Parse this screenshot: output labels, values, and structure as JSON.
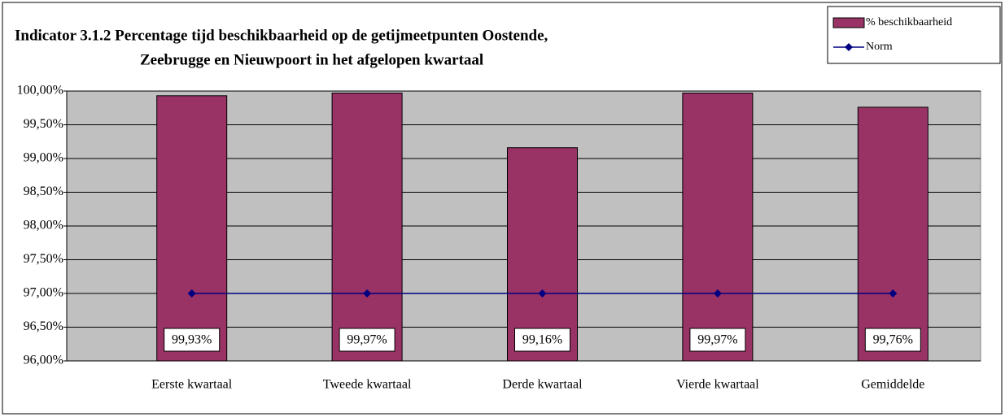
{
  "chart_data": {
    "type": "bar",
    "title": [
      "Indicator 3.1.2 Percentage tijd beschikbaarheid op de getijmeetpunten Oostende,",
      "Zeebrugge en Nieuwpoort in het afgelopen kwartaal"
    ],
    "categories": [
      "Eerste kwartaal",
      "Tweede kwartaal",
      "Derde kwartaal",
      "Vierde kwartaal",
      "Gemiddelde"
    ],
    "series": [
      {
        "name": "% beschikbaarheid",
        "color": "#993366",
        "values": [
          99.93,
          99.97,
          99.16,
          99.97,
          99.76
        ],
        "value_labels": [
          "99,93%",
          "99,97%",
          "99,16%",
          "99,97%",
          "99,76%"
        ]
      },
      {
        "name": "Norm",
        "type": "line",
        "color": "#000080",
        "values": [
          97,
          97,
          97,
          97,
          97
        ]
      }
    ],
    "ylim": [
      96,
      100
    ],
    "yticks": [
      {
        "value": 96,
        "label": "96,00%"
      },
      {
        "value": 96.5,
        "label": "96,50%"
      },
      {
        "value": 97,
        "label": "97,00%"
      },
      {
        "value": 97.5,
        "label": "97,50%"
      },
      {
        "value": 98,
        "label": "98,00%"
      },
      {
        "value": 98.5,
        "label": "98,50%"
      },
      {
        "value": 99,
        "label": "99,00%"
      },
      {
        "value": 99.5,
        "label": "99,50%"
      },
      {
        "value": 100,
        "label": "100,00%"
      }
    ],
    "grid": true,
    "legend": "top-right",
    "background": "#c0c0c0"
  }
}
